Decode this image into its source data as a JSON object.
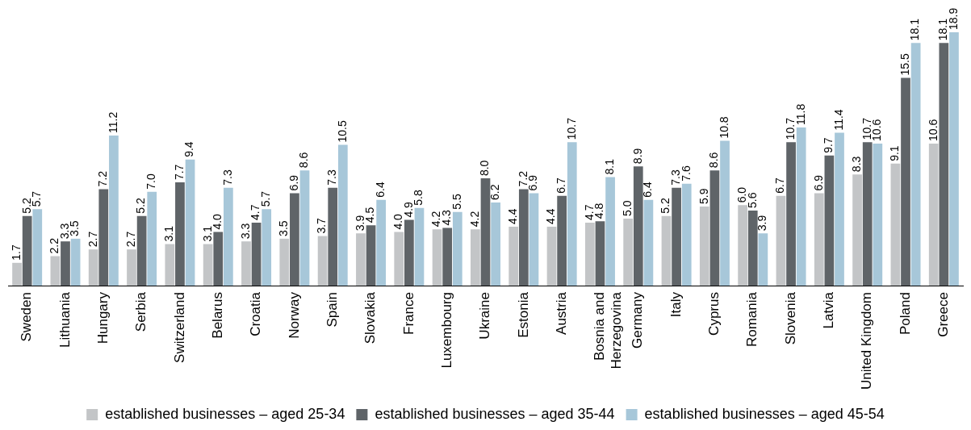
{
  "chart_data": {
    "type": "bar",
    "categories": [
      "Sweden",
      "Lithuania",
      "Hungary",
      "Serbia",
      "Switzerland",
      "Belarus",
      "Croatia",
      "Norway",
      "Spain",
      "Slovakia",
      "France",
      "Luxembourg",
      "Ukraine",
      "Estonia",
      "Austria",
      "Bosnia and Herzegovina",
      "Germany",
      "Italy",
      "Cyprus",
      "Romania",
      "Slovenia",
      "Latvia",
      "United Kingdom",
      "Poland",
      "Greece"
    ],
    "series": [
      {
        "name": "established businesses – aged 25-34",
        "color": "#c3c5c7",
        "values": [
          1.7,
          2.2,
          2.7,
          2.7,
          3.1,
          3.1,
          3.3,
          3.5,
          3.7,
          3.9,
          4.0,
          4.2,
          4.2,
          4.4,
          4.4,
          4.7,
          5.0,
          5.2,
          5.9,
          6.0,
          6.7,
          6.9,
          8.3,
          9.1,
          10.6
        ],
        "value_labels": [
          "1.7",
          "2.2",
          "2.7",
          "2.7",
          "3.1",
          "3.1",
          "3.3",
          "3.5",
          "3.7",
          "3.9",
          "4.0",
          "4.2",
          "4.2",
          "4.4",
          "4.4",
          "4.7",
          "5.0",
          "5.2",
          "5.9",
          "6.0",
          "6.7",
          "6.9",
          "8.3",
          "9.1",
          "10.6"
        ]
      },
      {
        "name": "established businesses – aged 35-44",
        "color": "#5f6468",
        "values": [
          5.2,
          3.3,
          7.2,
          5.2,
          7.7,
          4.0,
          4.7,
          6.9,
          7.3,
          4.5,
          4.9,
          4.3,
          8.0,
          7.2,
          6.7,
          4.8,
          8.9,
          7.3,
          8.6,
          5.6,
          10.7,
          9.7,
          10.7,
          15.5,
          18.1
        ],
        "value_labels": [
          "5.2",
          "3.3",
          "7.2",
          "5.2",
          "7.7",
          "4.0",
          "4.7",
          "6.9",
          "7.3",
          "4.5",
          "4.9",
          "4.3",
          "8.0",
          "7.2",
          "6.7",
          "4.8",
          "8.9",
          "7.3",
          "8.6",
          "5.6",
          "10.7",
          "9.7",
          "10.7",
          "15.5",
          "18.1"
        ]
      },
      {
        "name": "established businesses – aged 45-54",
        "color": "#a7c7d9",
        "values": [
          5.7,
          3.5,
          11.2,
          7.0,
          9.4,
          7.3,
          5.7,
          8.6,
          10.5,
          6.4,
          5.8,
          5.5,
          6.2,
          6.9,
          10.7,
          8.1,
          6.4,
          7.6,
          10.8,
          3.9,
          11.8,
          11.4,
          10.6,
          18.1,
          18.9
        ],
        "value_labels": [
          "5.7",
          "3.5",
          "11.2",
          "7.0",
          "9.4",
          "7.3",
          "5.7",
          "8.6",
          "10.5",
          "6.4",
          "5.8",
          "5.5",
          "6.2",
          "6.9",
          "10.7",
          "8.1",
          "6.4",
          "7.6",
          "10.8",
          "3.9",
          "11.8",
          "11.4",
          "10.6",
          "18.1",
          "18.9"
        ]
      }
    ],
    "legend": "bottom",
    "grid": false
  }
}
